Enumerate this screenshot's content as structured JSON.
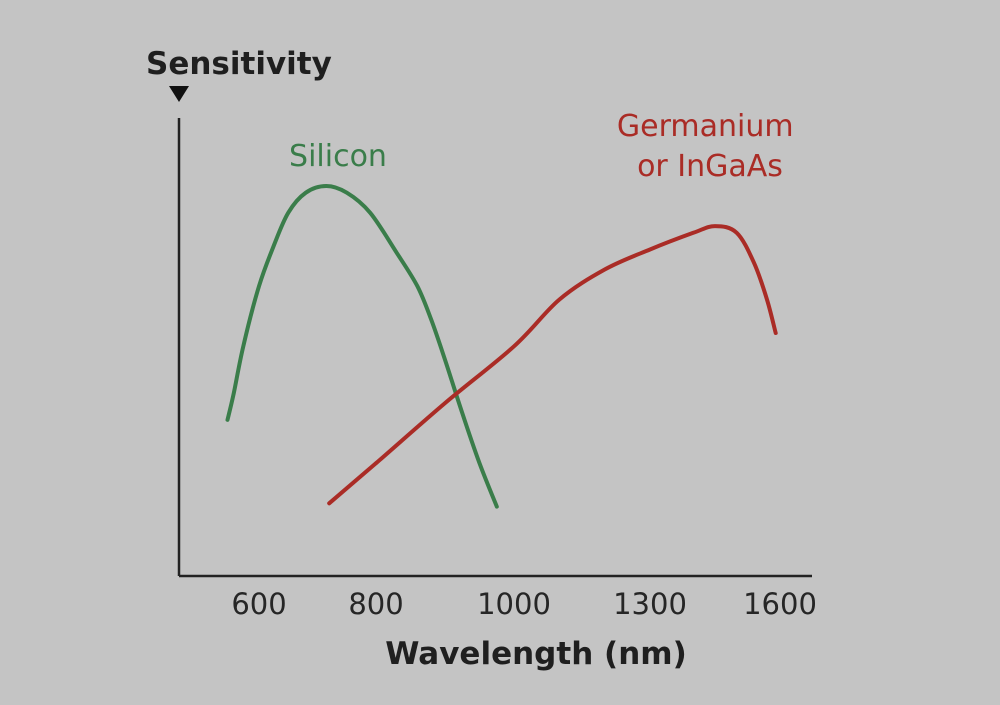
{
  "chart_data": {
    "type": "line",
    "title": "",
    "ylabel": "Sensitivity",
    "xlabel": "Wavelength (nm)",
    "x_ticks": [
      "600",
      "800",
      "1000",
      "1300",
      "1600"
    ],
    "xlim": [
      500,
      1650
    ],
    "ylim": [
      0,
      1
    ],
    "grid": false,
    "series": [
      {
        "name": "Silicon",
        "color": "#3a7d4a",
        "points": [
          {
            "x": 550,
            "y": 0.3
          },
          {
            "x": 560,
            "y": 0.38
          },
          {
            "x": 575,
            "y": 0.52
          },
          {
            "x": 600,
            "y": 0.7
          },
          {
            "x": 625,
            "y": 0.82
          },
          {
            "x": 650,
            "y": 0.92
          },
          {
            "x": 680,
            "y": 0.98
          },
          {
            "x": 715,
            "y": 1.0
          },
          {
            "x": 750,
            "y": 0.98
          },
          {
            "x": 790,
            "y": 0.92
          },
          {
            "x": 830,
            "y": 0.8
          },
          {
            "x": 860,
            "y": 0.7
          },
          {
            "x": 880,
            "y": 0.6
          },
          {
            "x": 900,
            "y": 0.48
          },
          {
            "x": 925,
            "y": 0.32
          },
          {
            "x": 950,
            "y": 0.17
          },
          {
            "x": 975,
            "y": 0.04
          }
        ]
      },
      {
        "name": "Germanium or InGaAs",
        "color": "#aa2c26",
        "points": [
          {
            "x": 720,
            "y": 0.05
          },
          {
            "x": 800,
            "y": 0.17
          },
          {
            "x": 900,
            "y": 0.35
          },
          {
            "x": 1000,
            "y": 0.52
          },
          {
            "x": 1100,
            "y": 0.66
          },
          {
            "x": 1200,
            "y": 0.75
          },
          {
            "x": 1300,
            "y": 0.81
          },
          {
            "x": 1400,
            "y": 0.86
          },
          {
            "x": 1450,
            "y": 0.88
          },
          {
            "x": 1500,
            "y": 0.86
          },
          {
            "x": 1540,
            "y": 0.77
          },
          {
            "x": 1570,
            "y": 0.66
          },
          {
            "x": 1590,
            "y": 0.56
          }
        ]
      }
    ]
  }
}
